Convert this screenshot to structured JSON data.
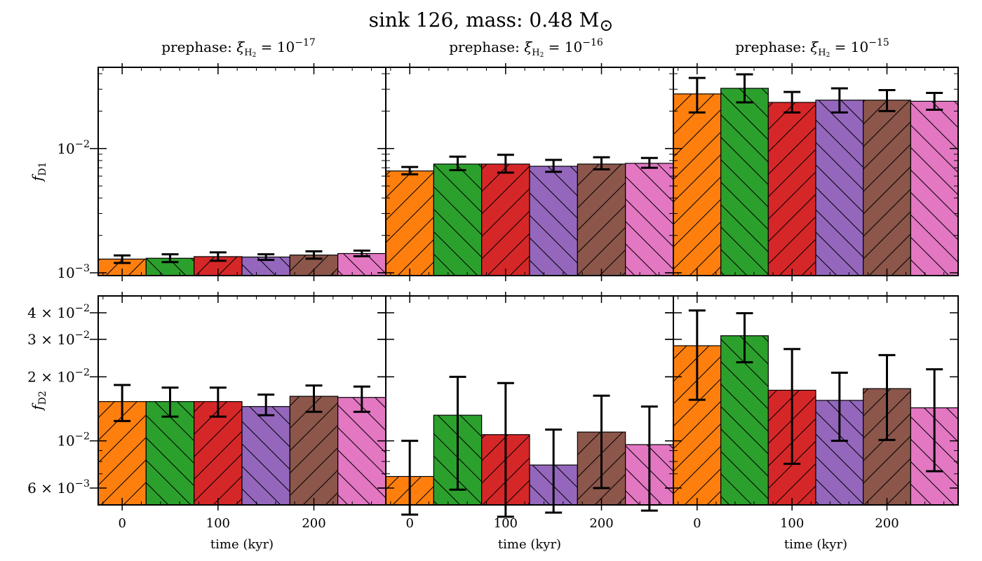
{
  "title": "sink 126, mass: 0.48 M",
  "title_symbol": "⊙",
  "chart_data": {
    "type": "bar",
    "title": "sink 126, mass: 0.48 M⊙",
    "x_ticks": [
      "0",
      "100",
      "200"
    ],
    "xlabel": "time (kyr)",
    "times_kyr": [
      0,
      50,
      100,
      150,
      200,
      250
    ],
    "bar_colors": [
      "#ff7f0e",
      "#2ca02c",
      "#d62728",
      "#9467bd",
      "#8c564b",
      "#e377c2"
    ],
    "hatch_pattern": [
      "forward",
      "back",
      "forward",
      "back",
      "forward",
      "back"
    ],
    "y_scale": "log",
    "columns": [
      {
        "subtitle_text": "prephase:",
        "xi_exp": "−17"
      },
      {
        "subtitle_text": "prephase:",
        "xi_exp": "−16"
      },
      {
        "subtitle_text": "prephase:",
        "xi_exp": "−15"
      }
    ],
    "rows": [
      {
        "ylabel": "f",
        "ylabel_sub": "D1",
        "ylim": [
          0.00095,
          0.045
        ],
        "major_ticks": [
          {
            "value": 0.01,
            "mant": "",
            "exp": "−2"
          },
          {
            "value": 0.001,
            "mant": "",
            "exp": "−3"
          }
        ],
        "panels": [
          {
            "values": [
              0.00129,
              0.00131,
              0.00135,
              0.00134,
              0.00139,
              0.00143
            ],
            "err_low": [
              0.0012,
              0.00122,
              0.00125,
              0.00127,
              0.0013,
              0.00136
            ],
            "err_high": [
              0.00138,
              0.00141,
              0.00146,
              0.00141,
              0.00149,
              0.00151
            ]
          },
          {
            "values": [
              0.0066,
              0.0075,
              0.0075,
              0.0072,
              0.0075,
              0.0076
            ],
            "err_low": [
              0.0062,
              0.0067,
              0.0064,
              0.0065,
              0.0068,
              0.007
            ],
            "err_high": [
              0.0071,
              0.0086,
              0.0089,
              0.0081,
              0.0085,
              0.0084
            ]
          },
          {
            "values": [
              0.0275,
              0.0305,
              0.0235,
              0.0245,
              0.0245,
              0.024
            ],
            "err_low": [
              0.0195,
              0.0235,
              0.0195,
              0.0195,
              0.02,
              0.0205
            ],
            "err_high": [
              0.037,
              0.0395,
              0.0285,
              0.0305,
              0.0295,
              0.028
            ]
          }
        ]
      },
      {
        "ylabel": "f",
        "ylabel_sub": "D2",
        "ylim": [
          0.005,
          0.048
        ],
        "major_ticks": [
          {
            "value": 0.04,
            "mant": "4 × ",
            "exp": "−2"
          },
          {
            "value": 0.03,
            "mant": "3 × ",
            "exp": "−2"
          },
          {
            "value": 0.02,
            "mant": "2 × ",
            "exp": "−2"
          },
          {
            "value": 0.01,
            "mant": "",
            "exp": "−2"
          },
          {
            "value": 0.006,
            "mant": "6 × ",
            "exp": "−3"
          }
        ],
        "panels": [
          {
            "values": [
              0.0153,
              0.0153,
              0.0153,
              0.0145,
              0.0162,
              0.016
            ],
            "err_low": [
              0.0124,
              0.013,
              0.013,
              0.0132,
              0.0137,
              0.0137
            ],
            "err_high": [
              0.0183,
              0.0178,
              0.0178,
              0.0165,
              0.0182,
              0.018
            ]
          },
          {
            "values": [
              0.0068,
              0.0132,
              0.0107,
              0.0077,
              0.011,
              0.0096
            ],
            "err_low": [
              0.0045,
              0.0059,
              0.0044,
              0.0046,
              0.006,
              0.0047
            ],
            "err_high": [
              0.01,
              0.02,
              0.0187,
              0.0113,
              0.0163,
              0.0145
            ]
          },
          {
            "values": [
              0.028,
              0.0312,
              0.0173,
              0.0155,
              0.0176,
              0.0143
            ],
            "err_low": [
              0.0156,
              0.0234,
              0.0078,
              0.01,
              0.0101,
              0.0072
            ],
            "err_high": [
              0.041,
              0.0398,
              0.027,
              0.0209,
              0.0253,
              0.0217
            ]
          }
        ]
      }
    ]
  }
}
